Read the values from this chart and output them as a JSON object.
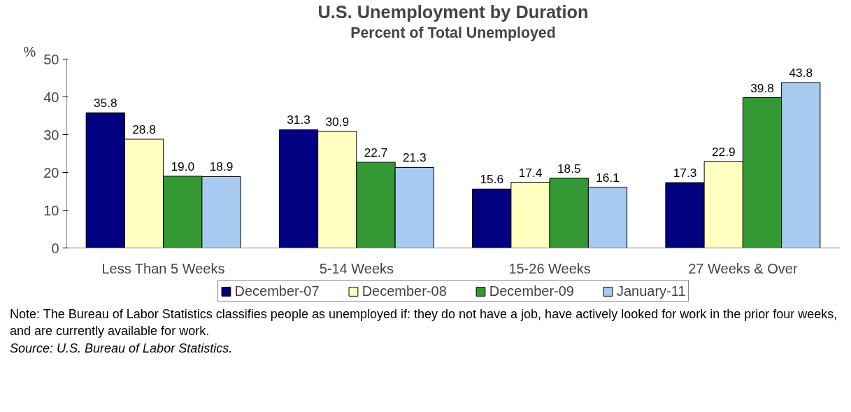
{
  "chart_data": {
    "type": "bar",
    "title": "U.S. Unemployment by Duration",
    "subtitle": "Percent of Total Unemployed",
    "ylabel": "%",
    "categories": [
      "Less Than 5 Weeks",
      "5-14 Weeks",
      "15-26 Weeks",
      "27 Weeks & Over"
    ],
    "series": [
      {
        "name": "December-07",
        "color": "#000080",
        "values": [
          35.8,
          31.3,
          15.6,
          17.3
        ],
        "value_labels": [
          "35.8",
          "31.3",
          "15.6",
          "17.3"
        ]
      },
      {
        "name": "December-08",
        "color": "#ffffc0",
        "values": [
          28.8,
          30.9,
          17.4,
          22.9
        ],
        "value_labels": [
          "28.8",
          "30.9",
          "17.4",
          "22.9"
        ]
      },
      {
        "name": "December-09",
        "color": "#339933",
        "values": [
          19.0,
          22.7,
          18.5,
          39.8
        ],
        "value_labels": [
          "19.0",
          "22.7",
          "18.5",
          "39.8"
        ]
      },
      {
        "name": "January-11",
        "color": "#a6caf0",
        "values": [
          18.9,
          21.3,
          16.1,
          43.8
        ],
        "value_labels": [
          "18.9",
          "21.3",
          "16.1",
          "43.8"
        ]
      }
    ],
    "ylim": [
      0,
      50
    ],
    "yticks": [
      0,
      10,
      20,
      30,
      40,
      50
    ],
    "grid": false,
    "legend": "bottom",
    "annotations": [
      "Note:  The Bureau of Labor Statistics classifies people as unemployed if: they do not have a job, have actively looked for work in the prior four weeks, and are currently available for work.",
      "Source:  U.S. Bureau of Labor Statistics."
    ]
  }
}
